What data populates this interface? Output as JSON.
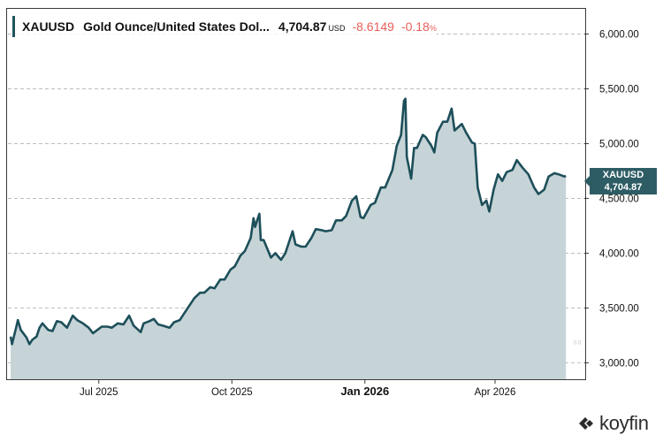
{
  "header": {
    "symbol": "XAUUSD",
    "name": "Gold Ounce/United States Dol...",
    "price": "4,704.87",
    "currency": "USD",
    "change": "-8.6149",
    "change_pct": "-0.18",
    "pct_symbol": "%"
  },
  "badge": {
    "symbol": "XAUUSD",
    "value": "4,704.87"
  },
  "faint_marker": "0.0",
  "logo": {
    "wordmark": "koyfin"
  },
  "colors": {
    "line": "#1d4f5a",
    "fill": "#c6d4d7",
    "badge": "#2e5c65",
    "negative": "#e8605a"
  },
  "chart_data": {
    "type": "area",
    "title": "XAUUSD Gold Ounce/United States Dol...",
    "ylim": [
      2850,
      6230
    ],
    "y_ticks": [
      {
        "value": 3000,
        "label": "3,000.00"
      },
      {
        "value": 3500,
        "label": "3,500.00"
      },
      {
        "value": 4000,
        "label": "4,000.00"
      },
      {
        "value": 4500,
        "label": "4,500.00"
      },
      {
        "value": 5000,
        "label": "5,000.00"
      },
      {
        "value": 5500,
        "label": "5,500.00"
      },
      {
        "value": 6000,
        "label": "6,000.00"
      }
    ],
    "x_ticks": [
      {
        "date": "2025-07-01",
        "label": "Jul 2025",
        "bold": false
      },
      {
        "date": "2025-10-01",
        "label": "Oct 2025",
        "bold": false
      },
      {
        "date": "2026-01-01",
        "label": "Jan 2026",
        "bold": true
      },
      {
        "date": "2026-04-01",
        "label": "Apr 2026",
        "bold": false
      }
    ],
    "xlim": [
      "2025-05-01",
      "2026-05-26"
    ],
    "grid": "horizontal-dashed",
    "series": [
      {
        "name": "XAUUSD",
        "points": [
          [
            "2025-05-01",
            3240
          ],
          [
            "2025-05-02",
            3170
          ],
          [
            "2025-05-05",
            3330
          ],
          [
            "2025-05-06",
            3390
          ],
          [
            "2025-05-08",
            3300
          ],
          [
            "2025-05-12",
            3230
          ],
          [
            "2025-05-14",
            3170
          ],
          [
            "2025-05-16",
            3210
          ],
          [
            "2025-05-19",
            3240
          ],
          [
            "2025-05-21",
            3320
          ],
          [
            "2025-05-23",
            3360
          ],
          [
            "2025-05-27",
            3300
          ],
          [
            "2025-05-30",
            3290
          ],
          [
            "2025-06-02",
            3380
          ],
          [
            "2025-06-05",
            3370
          ],
          [
            "2025-06-09",
            3320
          ],
          [
            "2025-06-13",
            3430
          ],
          [
            "2025-06-16",
            3390
          ],
          [
            "2025-06-20",
            3360
          ],
          [
            "2025-06-24",
            3320
          ],
          [
            "2025-06-27",
            3270
          ],
          [
            "2025-06-30",
            3300
          ],
          [
            "2025-07-03",
            3330
          ],
          [
            "2025-07-07",
            3330
          ],
          [
            "2025-07-10",
            3320
          ],
          [
            "2025-07-14",
            3360
          ],
          [
            "2025-07-18",
            3350
          ],
          [
            "2025-07-22",
            3430
          ],
          [
            "2025-07-25",
            3340
          ],
          [
            "2025-07-30",
            3280
          ],
          [
            "2025-08-01",
            3360
          ],
          [
            "2025-08-05",
            3380
          ],
          [
            "2025-08-08",
            3400
          ],
          [
            "2025-08-11",
            3350
          ],
          [
            "2025-08-14",
            3340
          ],
          [
            "2025-08-19",
            3320
          ],
          [
            "2025-08-22",
            3370
          ],
          [
            "2025-08-26",
            3390
          ],
          [
            "2025-08-29",
            3450
          ],
          [
            "2025-09-02",
            3530
          ],
          [
            "2025-09-05",
            3590
          ],
          [
            "2025-09-09",
            3640
          ],
          [
            "2025-09-12",
            3640
          ],
          [
            "2025-09-16",
            3690
          ],
          [
            "2025-09-19",
            3680
          ],
          [
            "2025-09-23",
            3760
          ],
          [
            "2025-09-26",
            3760
          ],
          [
            "2025-09-30",
            3850
          ],
          [
            "2025-10-03",
            3880
          ],
          [
            "2025-10-07",
            3980
          ],
          [
            "2025-10-10",
            4020
          ],
          [
            "2025-10-14",
            4140
          ],
          [
            "2025-10-16",
            4320
          ],
          [
            "2025-10-17",
            4240
          ],
          [
            "2025-10-20",
            4360
          ],
          [
            "2025-10-21",
            4120
          ],
          [
            "2025-10-23",
            4120
          ],
          [
            "2025-10-28",
            3960
          ],
          [
            "2025-10-31",
            4000
          ],
          [
            "2025-11-04",
            3940
          ],
          [
            "2025-11-07",
            4000
          ],
          [
            "2025-11-12",
            4200
          ],
          [
            "2025-11-14",
            4080
          ],
          [
            "2025-11-18",
            4060
          ],
          [
            "2025-11-21",
            4060
          ],
          [
            "2025-11-25",
            4140
          ],
          [
            "2025-11-28",
            4220
          ],
          [
            "2025-12-02",
            4210
          ],
          [
            "2025-12-05",
            4200
          ],
          [
            "2025-12-09",
            4210
          ],
          [
            "2025-12-12",
            4300
          ],
          [
            "2025-12-16",
            4300
          ],
          [
            "2025-12-19",
            4340
          ],
          [
            "2025-12-23",
            4480
          ],
          [
            "2025-12-26",
            4520
          ],
          [
            "2025-12-29",
            4330
          ],
          [
            "2025-12-31",
            4320
          ],
          [
            "2026-01-05",
            4440
          ],
          [
            "2026-01-08",
            4460
          ],
          [
            "2026-01-12",
            4600
          ],
          [
            "2026-01-15",
            4600
          ],
          [
            "2026-01-20",
            4760
          ],
          [
            "2026-01-23",
            4980
          ],
          [
            "2026-01-26",
            5080
          ],
          [
            "2026-01-28",
            5390
          ],
          [
            "2026-01-29",
            5410
          ],
          [
            "2026-01-30",
            4880
          ],
          [
            "2026-02-02",
            4680
          ],
          [
            "2026-02-04",
            4960
          ],
          [
            "2026-02-06",
            4960
          ],
          [
            "2026-02-10",
            5080
          ],
          [
            "2026-02-12",
            5060
          ],
          [
            "2026-02-16",
            4980
          ],
          [
            "2026-02-18",
            4920
          ],
          [
            "2026-02-20",
            5100
          ],
          [
            "2026-02-24",
            5200
          ],
          [
            "2026-02-27",
            5200
          ],
          [
            "2026-03-02",
            5320
          ],
          [
            "2026-03-04",
            5120
          ],
          [
            "2026-03-09",
            5180
          ],
          [
            "2026-03-12",
            5100
          ],
          [
            "2026-03-16",
            5010
          ],
          [
            "2026-03-18",
            5000
          ],
          [
            "2026-03-20",
            4600
          ],
          [
            "2026-03-23",
            4440
          ],
          [
            "2026-03-26",
            4480
          ],
          [
            "2026-03-28",
            4380
          ],
          [
            "2026-03-31",
            4580
          ],
          [
            "2026-04-03",
            4720
          ],
          [
            "2026-04-06",
            4660
          ],
          [
            "2026-04-09",
            4740
          ],
          [
            "2026-04-13",
            4760
          ],
          [
            "2026-04-16",
            4850
          ],
          [
            "2026-04-20",
            4780
          ],
          [
            "2026-04-24",
            4720
          ],
          [
            "2026-04-28",
            4600
          ],
          [
            "2026-05-01",
            4540
          ],
          [
            "2026-05-05",
            4580
          ],
          [
            "2026-05-08",
            4700
          ],
          [
            "2026-05-12",
            4730
          ],
          [
            "2026-05-15",
            4720
          ],
          [
            "2026-05-19",
            4700
          ],
          [
            "2026-05-20",
            4704.87
          ]
        ]
      }
    ]
  }
}
